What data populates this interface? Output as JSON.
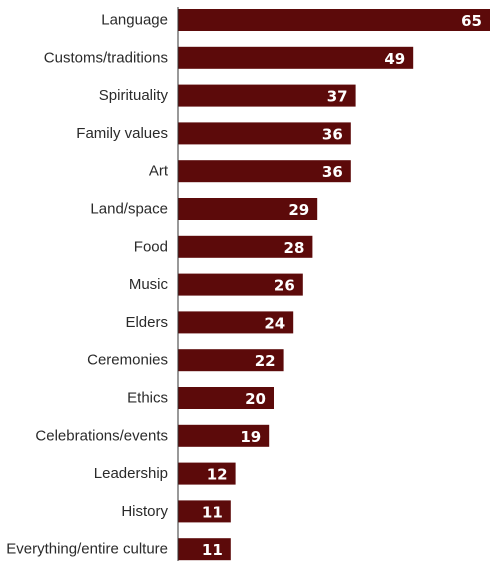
{
  "chart_data": {
    "type": "bar",
    "orientation": "horizontal",
    "categories": [
      "Language",
      "Customs/traditions",
      "Spirituality",
      "Family values",
      "Art",
      "Land/space",
      "Food",
      "Music",
      "Elders",
      "Ceremonies",
      "Ethics",
      "Celebrations/events",
      "Leadership",
      "History",
      "Everything/entire culture"
    ],
    "values": [
      65,
      49,
      37,
      36,
      36,
      29,
      28,
      26,
      24,
      22,
      20,
      19,
      12,
      11,
      11
    ],
    "title": "",
    "xlabel": "",
    "ylabel": "",
    "xlim": [
      0,
      65
    ],
    "grid": false,
    "legend": "none",
    "bar_color": "#5c0a0a",
    "label_color": "#ffffff"
  }
}
